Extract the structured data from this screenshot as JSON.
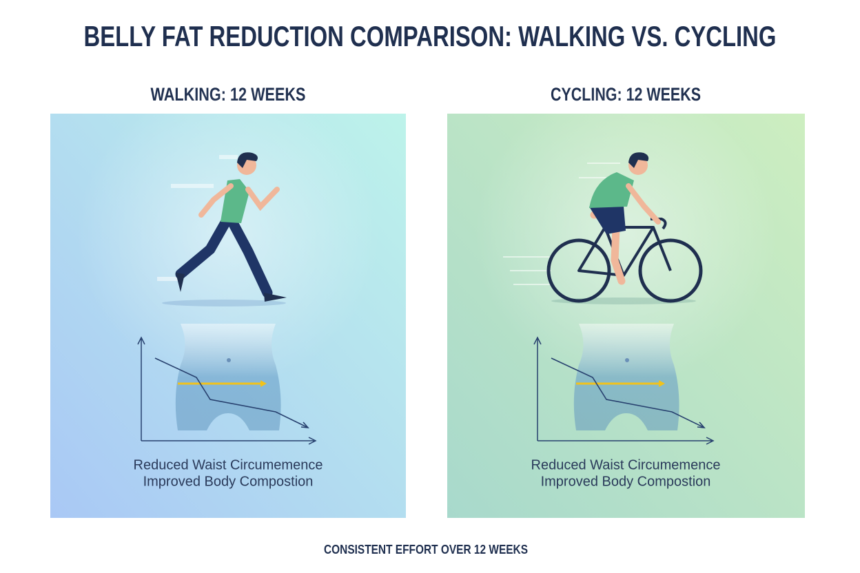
{
  "title": "BELLY FAT REDUCTION COMPARISON: WALKING VS. CYCLING",
  "panels": [
    {
      "heading": "WALKING: 12 WEEKS",
      "caption": [
        "Reduced Waist Circumemence",
        "Improved Body Compostion"
      ]
    },
    {
      "heading": "CYCLING: 12 WEEKS",
      "caption": [
        "Reduced Waist Circumemence",
        "Improved Body Compostion"
      ]
    }
  ],
  "footer": "CONSISTENT EFFORT OVER 12 WEEKS"
}
